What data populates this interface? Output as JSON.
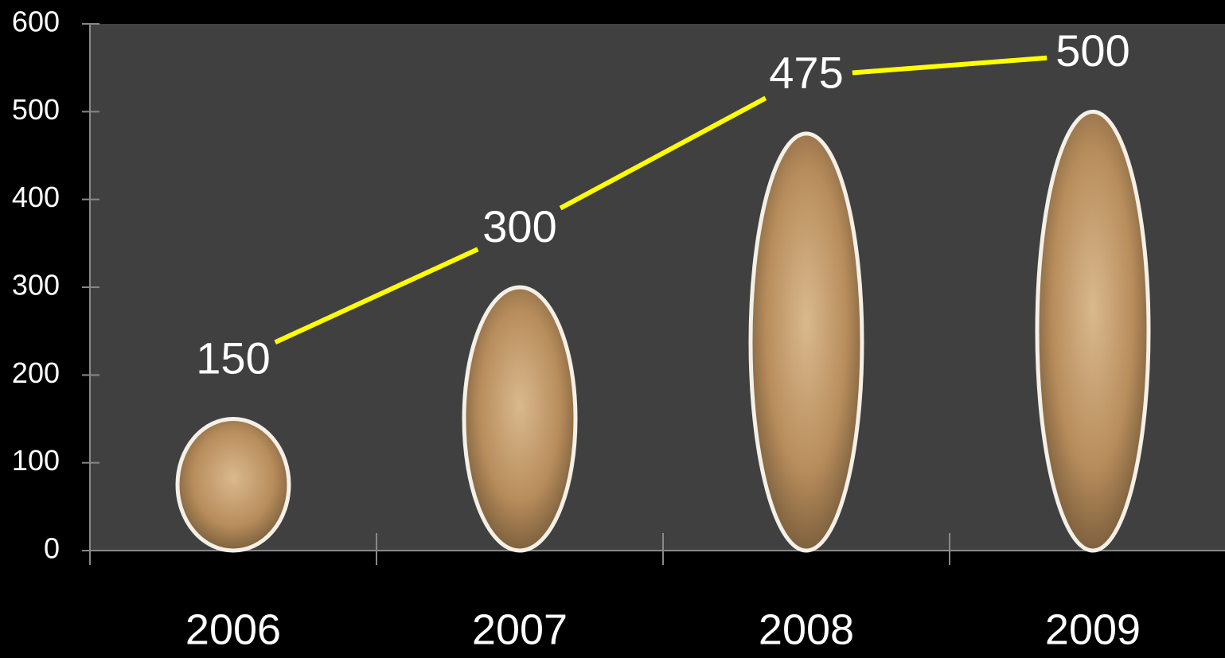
{
  "chart_data": {
    "type": "bar",
    "categories": [
      "2006",
      "2007",
      "2008",
      "2009"
    ],
    "values": [
      150,
      300,
      475,
      500
    ],
    "color": "#c4a27a",
    "connector_color": "#ffff00",
    "ylim": [
      0,
      600
    ],
    "yticks": [
      0,
      100,
      200,
      300,
      400,
      500,
      600
    ]
  }
}
